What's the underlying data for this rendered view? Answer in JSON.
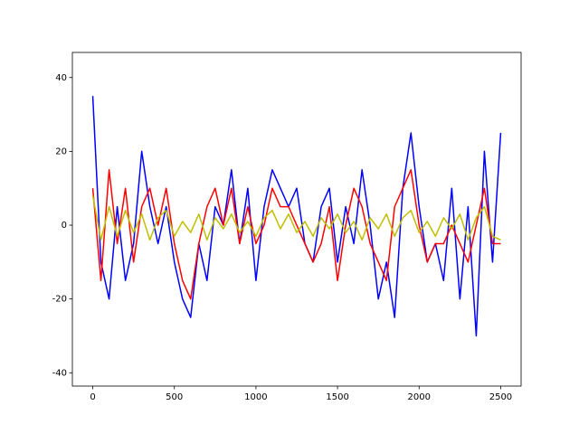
{
  "chart_data": {
    "type": "line",
    "x": [
      0,
      50,
      100,
      150,
      200,
      250,
      300,
      350,
      400,
      450,
      500,
      550,
      600,
      650,
      700,
      750,
      800,
      850,
      900,
      950,
      1000,
      1050,
      1100,
      1150,
      1200,
      1250,
      1300,
      1350,
      1400,
      1450,
      1500,
      1550,
      1600,
      1650,
      1700,
      1750,
      1800,
      1850,
      1900,
      1950,
      2000,
      2050,
      2100,
      2150,
      2200,
      2250,
      2300,
      2350,
      2400,
      2450,
      2500
    ],
    "series": [
      {
        "color": "#0000ff",
        "values": [
          35,
          -10,
          -20,
          5,
          -15,
          -5,
          20,
          5,
          -5,
          5,
          -10,
          -20,
          -25,
          -5,
          -15,
          5,
          0,
          15,
          -5,
          10,
          -15,
          5,
          15,
          10,
          5,
          10,
          -5,
          -10,
          5,
          10,
          -10,
          5,
          -5,
          15,
          0,
          -20,
          -10,
          -25,
          10,
          25,
          5,
          -10,
          -5,
          -15,
          10,
          -20,
          5,
          -30,
          20,
          -10,
          25
        ]
      },
      {
        "color": "#ff0000",
        "values": [
          10,
          -15,
          15,
          -5,
          10,
          -10,
          5,
          10,
          0,
          10,
          -5,
          -15,
          -20,
          -5,
          5,
          10,
          0,
          10,
          -5,
          5,
          -5,
          0,
          10,
          5,
          5,
          0,
          -5,
          -10,
          -5,
          5,
          -15,
          0,
          10,
          5,
          -5,
          -10,
          -15,
          5,
          10,
          15,
          0,
          -10,
          -5,
          -5,
          0,
          -5,
          -10,
          0,
          10,
          -5,
          -5
        ]
      },
      {
        "color": "#bfbf00",
        "values": [
          8,
          -4,
          5,
          -3,
          4,
          -2,
          3,
          -4,
          2,
          4,
          -3,
          1,
          -2,
          3,
          -4,
          2,
          -1,
          3,
          -2,
          1,
          -3,
          2,
          4,
          -1,
          3,
          -2,
          1,
          -3,
          2,
          -1,
          3,
          -2,
          1,
          -4,
          2,
          -1,
          3,
          -3,
          2,
          4,
          -2,
          1,
          -3,
          2,
          -1,
          3,
          -4,
          2,
          5,
          -3,
          -4
        ]
      }
    ],
    "xlim": [
      -125,
      2625
    ],
    "ylim": [
      -43.6,
      46.8
    ],
    "xticks": [
      0,
      500,
      1000,
      1500,
      2000,
      2500
    ],
    "yticks": [
      -40,
      -20,
      0,
      20,
      40
    ]
  }
}
